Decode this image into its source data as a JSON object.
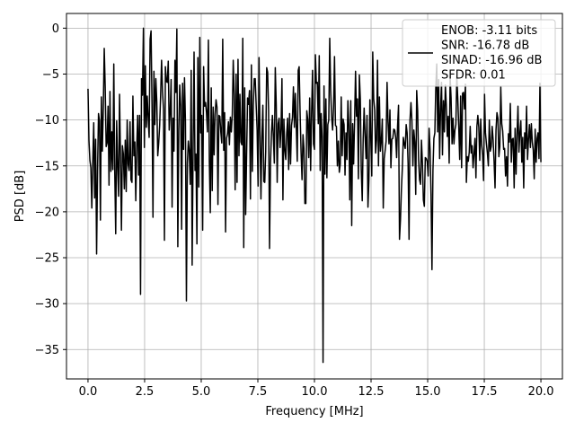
{
  "chart_data": {
    "type": "line",
    "title": "",
    "xlabel": "Frequency [MHz]",
    "ylabel": "PSD [dB]",
    "xlim": [
      -0.95,
      20.95
    ],
    "ylim": [
      -38.2,
      1.6
    ],
    "xticks": [
      0.0,
      2.5,
      5.0,
      7.5,
      10.0,
      12.5,
      15.0,
      17.5,
      20.0
    ],
    "xtick_labels": [
      "0.0",
      "2.5",
      "5.0",
      "7.5",
      "10.0",
      "12.5",
      "15.0",
      "17.5",
      "20.0"
    ],
    "yticks": [
      0,
      -5,
      -10,
      -15,
      -20,
      -25,
      -30,
      -35
    ],
    "ytick_labels": [
      "0",
      "−5",
      "−10",
      "−15",
      "−20",
      "−25",
      "−30",
      "−35"
    ],
    "grid": true,
    "legend_position": "top-right",
    "legend_entries": [
      "ENOB: -3.11 bits",
      "SNR: -16.78 dB",
      "SINAD: -16.96 dB",
      "SFDR: 0.01"
    ],
    "series": [
      {
        "color": "#000000",
        "x_start": 0.0,
        "x_end": 20.0,
        "values": [
          -6.6,
          -12.2,
          -14.4,
          -15.2,
          -19.6,
          -14.5,
          -10.3,
          -18.5,
          -12.1,
          -24.6,
          -15.5,
          -9.3,
          -10.1,
          -20.9,
          -7.5,
          -13.4,
          -8.8,
          -2.2,
          -6.4,
          -12.9,
          -12.5,
          -8.5,
          -17.1,
          -6.9,
          -15.6,
          -11.3,
          -15.4,
          -3.9,
          -15.6,
          -22.4,
          -10.1,
          -15.0,
          -18.3,
          -7.2,
          -14.0,
          -22.0,
          -12.8,
          -13.7,
          -17.5,
          -12.2,
          -17.8,
          -10.0,
          -14.8,
          -15.5,
          -10.2,
          -16.5,
          -16.8,
          -7.4,
          -13.9,
          -12.4,
          -18.8,
          -13.0,
          -9.5,
          -16.0,
          -9.5,
          -29.0,
          -5.5,
          -7.3,
          0.0,
          -13.0,
          -4.1,
          -10.8,
          -7.4,
          -9.8,
          -11.9,
          -1.2,
          -0.3,
          -8.3,
          -20.6,
          -4.7,
          -10.5,
          -5.5,
          -8.0,
          -13.9,
          -12.5,
          -10.6,
          -7.4,
          -3.5,
          -6.9,
          -8.8,
          -23.1,
          -4.2,
          -5.8,
          -5.9,
          -3.6,
          -11.1,
          -9.1,
          -5.6,
          -19.5,
          -9.8,
          -13.4,
          -3.5,
          -7.0,
          -0.1,
          -23.8,
          -11.2,
          -6.2,
          -8.4,
          -21.9,
          -6.0,
          -13.2,
          -5.4,
          -10.2,
          -29.7,
          -14.7,
          -12.3,
          -13.4,
          -17.0,
          -4.6,
          -25.8,
          -13.3,
          -2.6,
          -15.5,
          -13.7,
          -23.5,
          -3.2,
          -17.3,
          -1.0,
          -11.4,
          -9.5,
          -22.0,
          -4.2,
          -8.5,
          -8.1,
          -9.2,
          -11.3,
          -1.3,
          -14.5,
          -20.1,
          -6.5,
          -17.7,
          -8.6,
          -13.8,
          -9.4,
          -7.8,
          -8.6,
          -19.2,
          -9.5,
          -9.6,
          -11.3,
          -12.5,
          -1.2,
          -13.3,
          -9.2,
          -22.2,
          -12.0,
          -11.5,
          -10.2,
          -12.7,
          -9.7,
          -11.3,
          -9.4,
          -3.5,
          -7.2,
          -17.6,
          -5.0,
          -16.8,
          -3.4,
          -13.9,
          -7.2,
          -12.4,
          -12.7,
          -1.1,
          -23.9,
          -6.5,
          -20.3,
          -13.8,
          -7.6,
          -8.3,
          -6.8,
          -18.6,
          -4.0,
          -15.6,
          -8.4,
          -5.5,
          -5.5,
          -8.4,
          -11.1,
          -17.2,
          -3.2,
          -11.5,
          -18.6,
          -11.9,
          -8.4,
          -16.7,
          -16.8,
          -13.4,
          -4.3,
          -4.8,
          -8.9,
          -24.0,
          -14.7,
          -11.5,
          -9.5,
          -11.8,
          -14.7,
          -4.3,
          -8.3,
          -16.8,
          -10.4,
          -9.8,
          -13.0,
          -11.0,
          -5.5,
          -18.7,
          -9.9,
          -13.3,
          -14.3,
          -11.4,
          -9.8,
          -15.4,
          -9.3,
          -14.8,
          -10.6,
          -9.7,
          -6.4,
          -10.8,
          -7.1,
          -10.8,
          -14.5,
          -4.6,
          -4.2,
          -9.3,
          -13.5,
          -16.5,
          -11.6,
          -13.1,
          -19.1,
          -19.1,
          -9.0,
          -10.0,
          -14.1,
          -7.6,
          -15.5,
          -9.2,
          -4.6,
          -12.6,
          -13.2,
          -2.9,
          -6.0,
          -5.9,
          -10.4,
          -3.0,
          -15.5,
          -9.3,
          -11.8,
          -36.4,
          -6.3,
          -15.9,
          -7.7,
          -16.3,
          -10.5,
          -10.0,
          -1.1,
          -6.9,
          -9.7,
          -11.1,
          -8.6,
          -3.1,
          -10.6,
          -10.7,
          -15.0,
          -12.3,
          -15.7,
          -14.8,
          -7.5,
          -13.9,
          -9.9,
          -10.5,
          -16.0,
          -11.4,
          -14.3,
          -7.9,
          -10.6,
          -18.7,
          -7.9,
          -21.5,
          -10.4,
          -14.8,
          -10.2,
          -4.7,
          -9.6,
          -7.7,
          -16.4,
          -5.1,
          -7.7,
          -15.4,
          -18.8,
          -12.0,
          -8.7,
          -11.7,
          -14.2,
          -9.5,
          -19.5,
          -16.5,
          -7.8,
          -12.1,
          -16.1,
          -2.6,
          -7.7,
          -8.9,
          -13.6,
          -12.2,
          -3.5,
          -15.0,
          -7.5,
          -13.4,
          -12.3,
          -9.9,
          -19.6,
          -14.2,
          -13.3,
          -12.3,
          -5.9,
          -10.2,
          -12.6,
          -8.9,
          -15.2,
          -12.1,
          -12.0,
          -11.0,
          -11.1,
          -11.9,
          -14.1,
          -10.6,
          -8.4,
          -23.0,
          -20.9,
          -17.6,
          -15.2,
          -11.9,
          -12.6,
          -13.1,
          -10.5,
          -11.4,
          -14.7,
          -23.0,
          -10.0,
          -8.1,
          -10.1,
          -15.0,
          -11.1,
          -12.4,
          -18.1,
          -6.8,
          -9.0,
          -14.3,
          -16.5,
          -17.0,
          -12.2,
          -14.7,
          -18.7,
          -19.4,
          -14.1,
          -14.2,
          -14.5,
          -16.1,
          -10.9,
          -13.2,
          -18.1,
          -26.3,
          -15.5,
          -12.0,
          -11.4,
          -6.4,
          -3.9,
          -11.3,
          -5.6,
          -14.2,
          -8.8,
          -5.9,
          -13.8,
          -7.9,
          -11.3,
          -6.2,
          -8.4,
          -11.8,
          -9.6,
          -14.7,
          -5.3,
          -7.6,
          -12.6,
          -9.8,
          -12.6,
          -11.1,
          -10.5,
          -5.3,
          -7.7,
          -10.7,
          -14.3,
          -7.4,
          -15.2,
          -7.1,
          -7.0,
          -8.8,
          -6.1,
          -16.8,
          -14.0,
          -14.5,
          -13.5,
          -10.7,
          -13.6,
          -12.8,
          -15.2,
          -13.7,
          -12.0,
          -16.3,
          -10.7,
          -9.5,
          -10.8,
          -14.4,
          -9.9,
          -12.7,
          -13.8,
          -16.6,
          -7.2,
          -11.4,
          -12.6,
          -13.6,
          -15.0,
          -10.0,
          -13.4,
          -12.9,
          -10.7,
          -12.2,
          -14.5,
          -17.4,
          -11.1,
          -9.2,
          -9.8,
          -14.0,
          -12.9,
          -6.4,
          -10.4,
          -11.2,
          -13.2,
          -13.1,
          -16.1,
          -14.0,
          -17.2,
          -11.5,
          -12.4,
          -8.2,
          -14.6,
          -12.1,
          -12.0,
          -17.4,
          -10.9,
          -15.9,
          -11.6,
          -8.5,
          -13.5,
          -11.4,
          -10.1,
          -14.6,
          -11.9,
          -17.4,
          -11.4,
          -13.1,
          -8.5,
          -14.3,
          -12.1,
          -10.5,
          -13.0,
          -10.4,
          -12.4,
          -13.3,
          -16.4,
          -11.0,
          -14.6,
          -12.0,
          -11.4,
          -14.2,
          -6.0,
          -14.6
        ]
      }
    ]
  }
}
